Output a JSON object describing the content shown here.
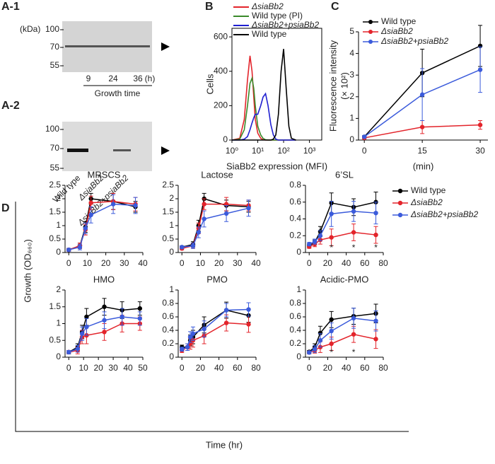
{
  "blots": [
    {
      "panel_label": "A-1",
      "unit": "(kDa)",
      "markers": [
        100,
        70,
        55
      ],
      "lanes": [
        "9",
        "24",
        "36"
      ],
      "lane_unit": "(h)",
      "xlabel": "Growth time"
    },
    {
      "panel_label": "A-2",
      "markers": [
        100,
        70,
        55
      ],
      "lanes": [
        "Wild type",
        "ΔsiaBb2",
        "ΔsiaBb2+psiaBb2"
      ]
    }
  ],
  "figure_d": {
    "panel_label": "D",
    "xlabel": "Time (hr)",
    "ylabel": "Growth (OD₆₆₀)",
    "legend": [
      {
        "name": "Wild type",
        "color": "#000000"
      },
      {
        "name": "ΔsiaBb2",
        "color": "#e3242b"
      },
      {
        "name": "ΔsiaBb2+psiaBb2",
        "color": "#3b5bdb"
      }
    ]
  },
  "chart_data": [
    {
      "type": "line",
      "panel_label": "B",
      "xlabel": "SiaBb2 expression (MFI)",
      "ylabel": "Cells",
      "xlog": true,
      "frame": true,
      "legend": "above",
      "x": [
        1,
        2,
        3,
        4,
        5,
        6,
        7,
        8,
        10,
        13,
        16,
        20,
        25,
        32,
        40,
        50,
        63,
        80,
        100,
        126,
        160,
        200,
        300
      ],
      "xlim": [
        1,
        3000
      ],
      "xticks": [
        {
          "value": 1,
          "label": "10⁰"
        },
        {
          "value": 10,
          "label": "10¹"
        },
        {
          "value": 100,
          "label": "10²"
        },
        {
          "value": 1000,
          "label": "10³"
        }
      ],
      "ylim": [
        0,
        650
      ],
      "yticks": [
        0,
        200,
        400,
        600
      ],
      "series": [
        {
          "name": "ΔsiaBb2",
          "color": "#e3242b",
          "values": [
            0,
            10,
            120,
            350,
            490,
            400,
            250,
            120,
            40,
            10,
            2,
            0,
            0,
            0,
            0,
            0,
            0,
            0,
            0,
            0,
            0,
            0,
            0
          ]
        },
        {
          "name": "Wild type (PI)",
          "color": "#3a8a2a",
          "values": [
            0,
            5,
            60,
            200,
            330,
            360,
            300,
            200,
            80,
            30,
            10,
            2,
            0,
            0,
            0,
            0,
            0,
            0,
            0,
            0,
            0,
            0,
            0
          ]
        },
        {
          "name": "ΔsiaBb2+psiaBb2",
          "color": "#1f1fd0",
          "values": [
            0,
            0,
            5,
            20,
            60,
            100,
            130,
            150,
            150,
            200,
            250,
            270,
            200,
            90,
            30,
            5,
            0,
            0,
            0,
            0,
            0,
            0,
            0
          ]
        },
        {
          "name": "Wild type",
          "color": "#000000",
          "values": [
            0,
            0,
            0,
            0,
            0,
            0,
            0,
            0,
            0,
            0,
            0,
            0,
            0,
            0,
            5,
            30,
            150,
            400,
            530,
            300,
            80,
            10,
            0
          ]
        }
      ]
    },
    {
      "type": "line",
      "panel_label": "C",
      "xlabel": "(min)",
      "ylabel": "Fluorescence intensity",
      "ylabel2": "(× 10²)",
      "markers": true,
      "legend": "upper left",
      "x": [
        0,
        15,
        30
      ],
      "xlim": [
        -1.5,
        32
      ],
      "xticks": [
        0,
        15,
        30
      ],
      "ylim": [
        0,
        5
      ],
      "yticks": [
        0,
        1,
        2,
        3,
        4,
        5
      ],
      "series": [
        {
          "name": "Wild type",
          "color": "#000000",
          "values": [
            0.15,
            3.1,
            4.35
          ],
          "errors": [
            0.05,
            1.1,
            0.95
          ]
        },
        {
          "name": "ΔsiaBb2",
          "color": "#e3242b",
          "values": [
            0.1,
            0.6,
            0.7
          ],
          "errors": [
            0.05,
            0.3,
            0.2
          ]
        },
        {
          "name": "ΔsiaBb2+psiaBb2",
          "color": "#3b5bdb",
          "values": [
            0.15,
            2.1,
            3.25
          ],
          "errors": [
            0.05,
            1.2,
            1.05
          ]
        }
      ]
    },
    {
      "type": "line",
      "title": "MRSCS",
      "markers": true,
      "x": [
        0,
        6,
        9,
        12,
        24,
        36
      ],
      "xlim": [
        -2,
        40
      ],
      "xticks": [
        0,
        10,
        20,
        30,
        40
      ],
      "ylim": [
        0,
        2.5
      ],
      "yticks": [
        0,
        0.5,
        1,
        1.5,
        2,
        2.5
      ],
      "series": [
        {
          "values": [
            0.1,
            0.25,
            0.95,
            2.0,
            1.9,
            1.7
          ],
          "errors": [
            0.05,
            0.1,
            0.2,
            0.2,
            0.3,
            0.2
          ]
        },
        {
          "values": [
            0.1,
            0.25,
            0.85,
            1.85,
            1.9,
            1.8
          ],
          "errors": [
            0.05,
            0.1,
            0.2,
            0.25,
            0.3,
            0.25
          ]
        },
        {
          "values": [
            0.1,
            0.2,
            0.9,
            1.4,
            1.8,
            1.75
          ],
          "errors": [
            0.05,
            0.1,
            0.2,
            0.3,
            0.35,
            0.3
          ]
        }
      ]
    },
    {
      "type": "line",
      "title": "Lactose",
      "markers": true,
      "x": [
        0,
        6,
        9,
        12,
        24,
        36
      ],
      "xlim": [
        -2,
        40
      ],
      "xticks": [
        0,
        10,
        20,
        30,
        40
      ],
      "ylim": [
        0,
        2.5
      ],
      "yticks": [
        0,
        0.5,
        1,
        1.5,
        2,
        2.5
      ],
      "series": [
        {
          "values": [
            0.2,
            0.3,
            1.0,
            2.0,
            1.75,
            1.7
          ],
          "errors": [
            0.05,
            0.1,
            0.2,
            0.2,
            0.2,
            0.2
          ]
        },
        {
          "values": [
            0.15,
            0.25,
            0.9,
            1.8,
            1.8,
            1.75
          ],
          "errors": [
            0.05,
            0.1,
            0.2,
            0.2,
            0.25,
            0.2
          ]
        },
        {
          "values": [
            0.2,
            0.25,
            0.75,
            1.25,
            1.45,
            1.65
          ],
          "errors": [
            0.05,
            0.1,
            0.2,
            0.3,
            0.3,
            0.3
          ]
        }
      ]
    },
    {
      "type": "line",
      "title": "6’SL",
      "markers": true,
      "x": [
        0,
        6,
        12,
        24,
        48,
        72
      ],
      "xlim": [
        -4,
        80
      ],
      "xticks": [
        0,
        20,
        40,
        60,
        80
      ],
      "ylim": [
        0,
        0.8
      ],
      "yticks": [
        0,
        0.2,
        0.4,
        0.6,
        0.8
      ],
      "annotations": [
        {
          "text": "*",
          "x": 24
        },
        {
          "text": "*",
          "x": 48
        },
        {
          "text": "*",
          "x": 72
        }
      ],
      "series": [
        {
          "values": [
            0.08,
            0.12,
            0.25,
            0.59,
            0.54,
            0.6
          ],
          "errors": [
            0.02,
            0.03,
            0.06,
            0.12,
            0.1,
            0.12
          ]
        },
        {
          "values": [
            0.07,
            0.1,
            0.15,
            0.18,
            0.24,
            0.21
          ],
          "errors": [
            0.02,
            0.03,
            0.05,
            0.1,
            0.1,
            0.1
          ]
        },
        {
          "values": [
            0.1,
            0.13,
            0.2,
            0.46,
            0.49,
            0.47
          ],
          "errors": [
            0.02,
            0.03,
            0.06,
            0.15,
            0.12,
            0.13
          ]
        }
      ]
    },
    {
      "type": "line",
      "title": "HMO",
      "markers": true,
      "x": [
        0,
        6,
        9,
        12,
        24,
        36,
        48
      ],
      "xlim": [
        -2.5,
        50
      ],
      "xticks": [
        0,
        10,
        20,
        30,
        40,
        50
      ],
      "ylim": [
        0,
        2
      ],
      "yticks": [
        0,
        0.5,
        1,
        1.5,
        2
      ],
      "series": [
        {
          "values": [
            0.15,
            0.3,
            0.75,
            1.2,
            1.5,
            1.4,
            1.45
          ],
          "errors": [
            0.05,
            0.1,
            0.2,
            0.25,
            0.25,
            0.25,
            0.2
          ]
        },
        {
          "values": [
            0.15,
            0.2,
            0.6,
            0.65,
            0.75,
            1.0,
            1.0
          ],
          "errors": [
            0.05,
            0.1,
            0.2,
            0.25,
            0.25,
            0.25,
            0.2
          ]
        },
        {
          "values": [
            0.15,
            0.25,
            0.7,
            0.9,
            1.1,
            1.2,
            1.15
          ],
          "errors": [
            0.05,
            0.1,
            0.2,
            0.25,
            0.25,
            0.25,
            0.2
          ]
        }
      ]
    },
    {
      "type": "line",
      "title": "PMO",
      "markers": true,
      "x": [
        0,
        6,
        9,
        12,
        24,
        48,
        72
      ],
      "xlim": [
        -4,
        80
      ],
      "xticks": [
        0,
        20,
        40,
        60,
        80
      ],
      "ylim": [
        0,
        1
      ],
      "yticks": [
        0,
        0.2,
        0.4,
        0.6,
        0.8,
        1
      ],
      "series": [
        {
          "values": [
            0.15,
            0.15,
            0.25,
            0.3,
            0.48,
            0.7,
            0.62
          ],
          "errors": [
            0.03,
            0.05,
            0.08,
            0.1,
            0.12,
            0.12,
            0.1
          ]
        },
        {
          "values": [
            0.1,
            0.15,
            0.2,
            0.25,
            0.32,
            0.51,
            0.49
          ],
          "errors": [
            0.03,
            0.05,
            0.08,
            0.1,
            0.12,
            0.12,
            0.12
          ]
        },
        {
          "values": [
            0.12,
            0.15,
            0.3,
            0.35,
            0.42,
            0.7,
            0.71
          ],
          "errors": [
            0.03,
            0.05,
            0.08,
            0.1,
            0.12,
            0.1,
            0.1
          ]
        }
      ]
    },
    {
      "type": "line",
      "title": "Acidic-PMO",
      "markers": true,
      "x": [
        0,
        6,
        12,
        24,
        48,
        72
      ],
      "xlim": [
        -4,
        80
      ],
      "xticks": [
        0,
        20,
        40,
        60,
        80
      ],
      "ylim": [
        0,
        1
      ],
      "yticks": [
        0,
        0.2,
        0.4,
        0.6,
        0.8,
        1
      ],
      "annotations": [
        {
          "text": "*",
          "x": 24
        },
        {
          "text": "*",
          "x": 48
        }
      ],
      "series": [
        {
          "values": [
            0.08,
            0.15,
            0.36,
            0.56,
            0.61,
            0.65
          ],
          "errors": [
            0.02,
            0.05,
            0.1,
            0.12,
            0.12,
            0.14
          ]
        },
        {
          "values": [
            0.07,
            0.1,
            0.15,
            0.2,
            0.34,
            0.27
          ],
          "errors": [
            0.02,
            0.04,
            0.08,
            0.1,
            0.12,
            0.14
          ]
        },
        {
          "values": [
            0.07,
            0.12,
            0.25,
            0.39,
            0.58,
            0.54
          ],
          "errors": [
            0.02,
            0.05,
            0.1,
            0.12,
            0.15,
            0.15
          ]
        }
      ]
    }
  ]
}
